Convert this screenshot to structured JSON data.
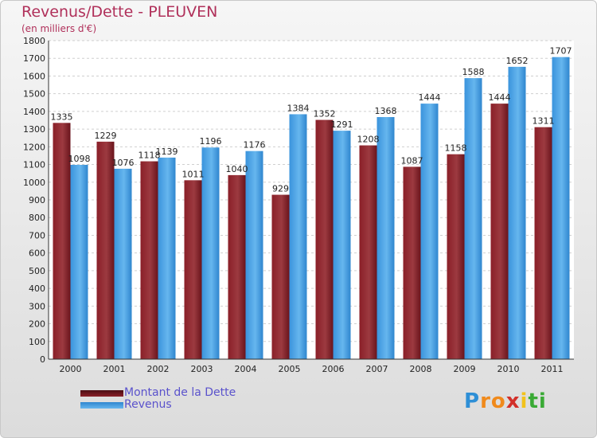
{
  "chart_data": {
    "type": "bar",
    "title": "Revenus/Dette - PLEUVEN",
    "subtitle": "(en milliers d'€)",
    "categories": [
      "2000",
      "2001",
      "2002",
      "2003",
      "2004",
      "2005",
      "2006",
      "2007",
      "2008",
      "2009",
      "2010",
      "2011"
    ],
    "series": [
      {
        "name": "Montant de la Dette",
        "values": [
          1335,
          1229,
          1118,
          1011,
          1040,
          929,
          1352,
          1208,
          1087,
          1158,
          1444,
          1311
        ],
        "color": "#7a1c24"
      },
      {
        "name": "Revenus",
        "values": [
          1098,
          1076,
          1139,
          1196,
          1176,
          1384,
          1291,
          1368,
          1444,
          1588,
          1652,
          1707
        ],
        "color": "#3f9be0"
      }
    ],
    "ylim": [
      0,
      1800
    ],
    "yticks": [
      0,
      100,
      200,
      300,
      400,
      500,
      600,
      700,
      800,
      900,
      1000,
      1100,
      1200,
      1300,
      1400,
      1500,
      1600,
      1700,
      1800
    ],
    "grid": true,
    "legend_position": "bottom-left"
  },
  "logo": {
    "letters": [
      "P",
      "r",
      "o",
      "x",
      "i",
      "t",
      "i"
    ],
    "colors": [
      "#2e8fd6",
      "#f08a1c",
      "#f08a1c",
      "#d2302a",
      "#f2c21c",
      "#3aaa35",
      "#3aaa35"
    ]
  }
}
